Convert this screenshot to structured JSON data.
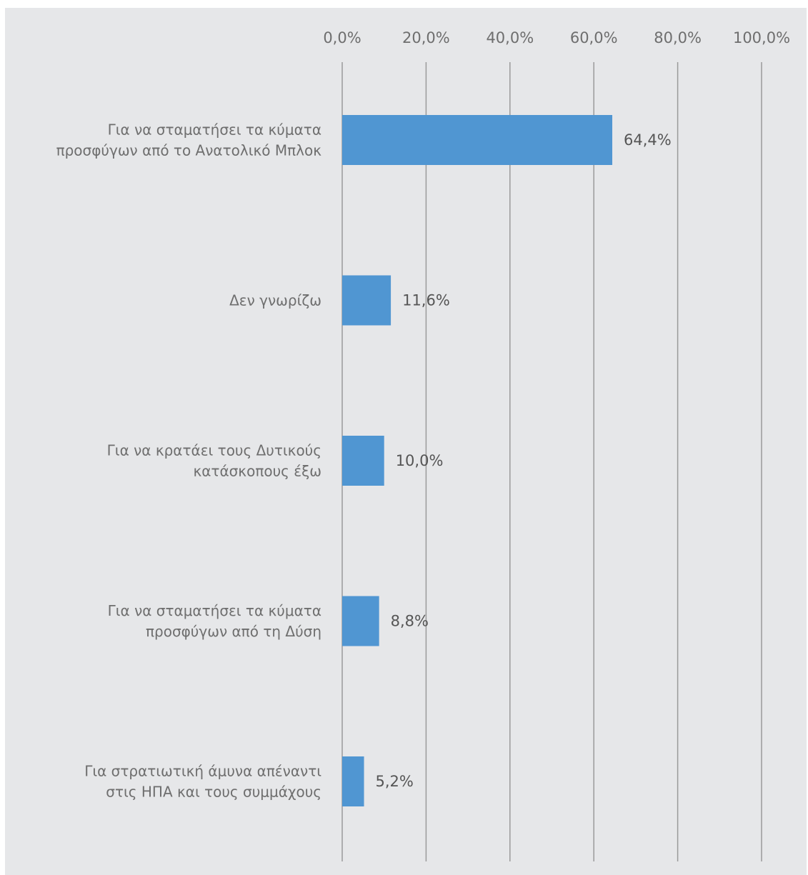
{
  "chart_data": {
    "type": "bar",
    "orientation": "horizontal",
    "categories": [
      [
        "Για να σταματήσει τα κύματα",
        "προσφύγων από το  Ανατολικό Μπλοκ"
      ],
      [
        "Δεν γνωρίζω"
      ],
      [
        "Για να κρατάει τους Δυτικούς",
        "κατάσκοπους έξω"
      ],
      [
        "Για να σταματήσει τα κύματα",
        "προσφύγων από τη Δύση"
      ],
      [
        "Για στρατιωτική άμυνα απέναντι",
        "στις ΗΠΑ και τους συμμάχους"
      ]
    ],
    "values": [
      64.4,
      11.6,
      10.0,
      8.8,
      5.2
    ],
    "value_labels": [
      "64,4%",
      "11,6%",
      "10,0%",
      "8,8%",
      "5,2%"
    ],
    "xlim": [
      0,
      100
    ],
    "ticks": [
      0,
      20,
      40,
      60,
      80,
      100
    ],
    "tick_labels": [
      "0,0%",
      "20,0%",
      "40,0%",
      "60,0%",
      "80,0%",
      "100,0%"
    ],
    "x_axis_position": "top",
    "grid": true,
    "title": "",
    "xlabel": "",
    "ylabel": "",
    "colors": {
      "background": "#e6e7e9",
      "bar": "#5096d2",
      "grid": "#9a9a9a",
      "tick_text": "#6e6e6e",
      "value_text": "#555555"
    }
  }
}
